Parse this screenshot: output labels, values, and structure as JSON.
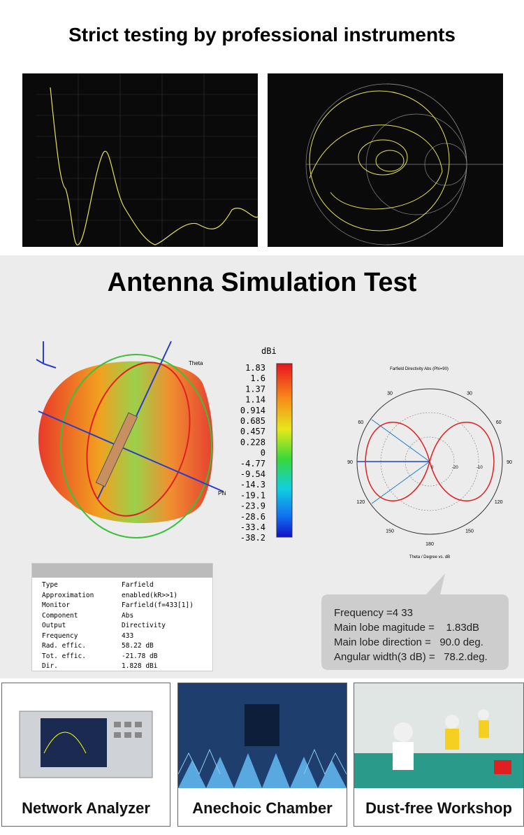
{
  "header": {
    "title": "Strict testing by professional instruments"
  },
  "simulation": {
    "title": "Antenna Simulation Test",
    "pattern_3d": {
      "axis_theta": "Theta",
      "axis_phi": "Phi"
    },
    "colorbar": {
      "unit": "dBi",
      "labels": [
        "1.83",
        "1.6",
        "1.37",
        "1.14",
        "0.914",
        "0.685",
        "0.457",
        "0.228",
        "0",
        "-4.77",
        "-9.54",
        "-14.3",
        "-19.1",
        "-23.9",
        "-28.6",
        "-33.4",
        "-38.2"
      ]
    },
    "polar": {
      "title": "Farfield Directivity Abs (Phi=90)",
      "axis_label": "Theta / Degree vs. dB",
      "left_labels": [
        "30",
        "60",
        "90",
        "120",
        "150"
      ],
      "right_labels": [
        "30",
        "60",
        "90",
        "120",
        "150"
      ],
      "bottom_label": "180",
      "ring_labels": [
        "0",
        "-20",
        "-10"
      ]
    },
    "table": {
      "rows": [
        [
          "Type",
          "Farfield"
        ],
        [
          "Approximation",
          "enabled(kR>>1)"
        ],
        [
          "Monitor",
          "Farfield(f=433[1])"
        ],
        [
          "Component",
          "Abs"
        ],
        [
          "Output",
          "Directivity"
        ],
        [
          "Frequency",
          "433"
        ],
        [
          "Rad. effic.",
          "58.22 dB"
        ],
        [
          "Tot. effic.",
          "-21.78 dB"
        ],
        [
          "Dir.",
          "1.828 dBi"
        ]
      ]
    },
    "callout": {
      "lines": [
        "Frequency =4 33",
        "Main lobe magitude =    1.83dB",
        "Main lobe direction =   90.0 deg.",
        "Angular width(3 dB) =   78.2.deg."
      ]
    }
  },
  "equipment": [
    {
      "caption": "Network Analyzer"
    },
    {
      "caption": "Anechoic Chamber"
    },
    {
      "caption": "Dust-free Workshop"
    }
  ]
}
